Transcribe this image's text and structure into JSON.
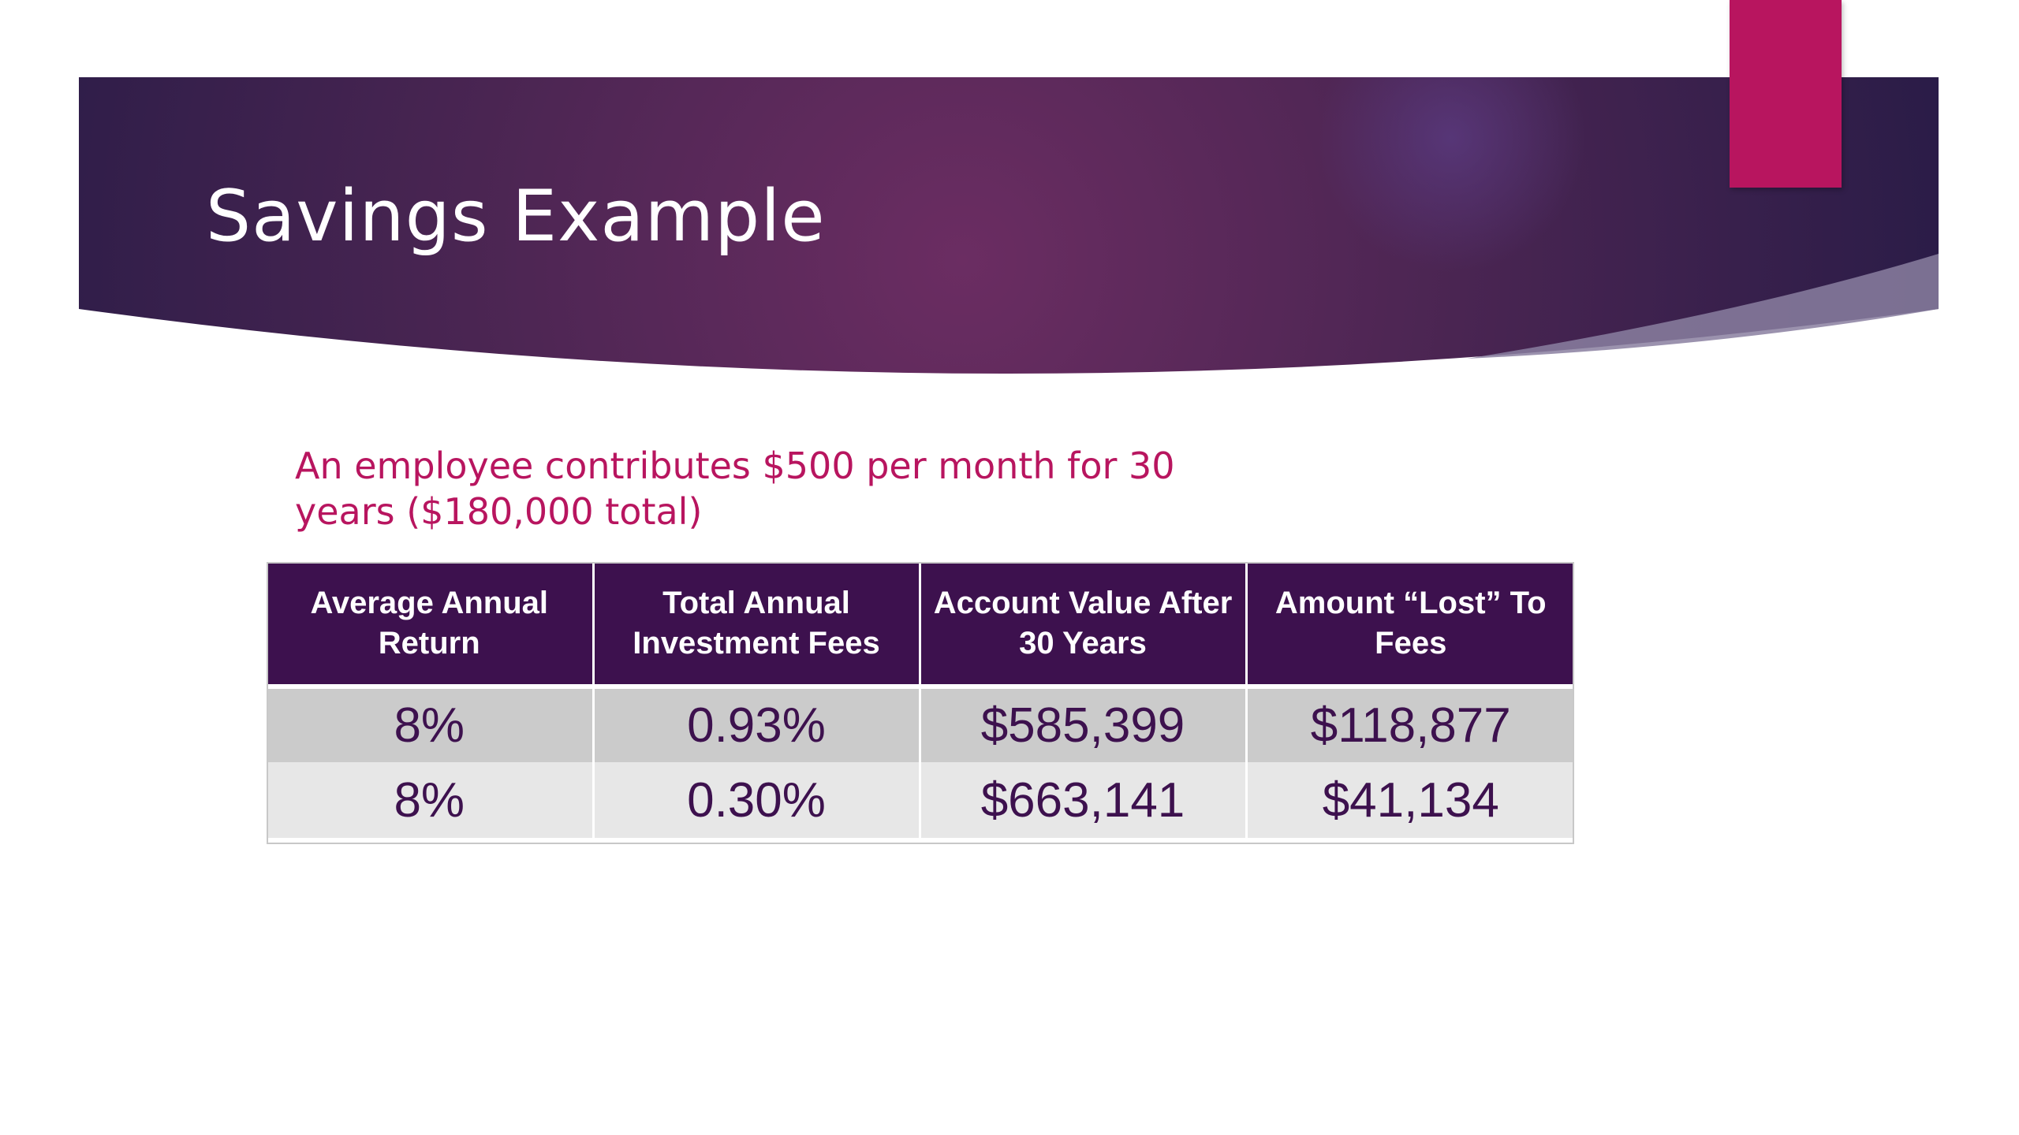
{
  "slide": {
    "title": "Savings Example",
    "subtitle": "An employee contributes $500 per month for 30 years ($180,000 total)"
  },
  "colors": {
    "accent": "#b8155f",
    "banner_dark": "#2e1a4c",
    "banner_center": "#6b2d62",
    "table_header": "#3d114e",
    "row_dark": "#cbcbcb",
    "row_light": "#e7e7e7"
  },
  "table": {
    "headers": [
      "Average Annual Return",
      "Total  Annual Investment Fees",
      "Account Value After 30 Years",
      "Amount “Lost” To Fees"
    ],
    "rows": [
      [
        "8%",
        "0.93%",
        "$585,399",
        "$118,877"
      ],
      [
        "8%",
        "0.30%",
        "$663,141",
        "$41,134"
      ]
    ]
  }
}
